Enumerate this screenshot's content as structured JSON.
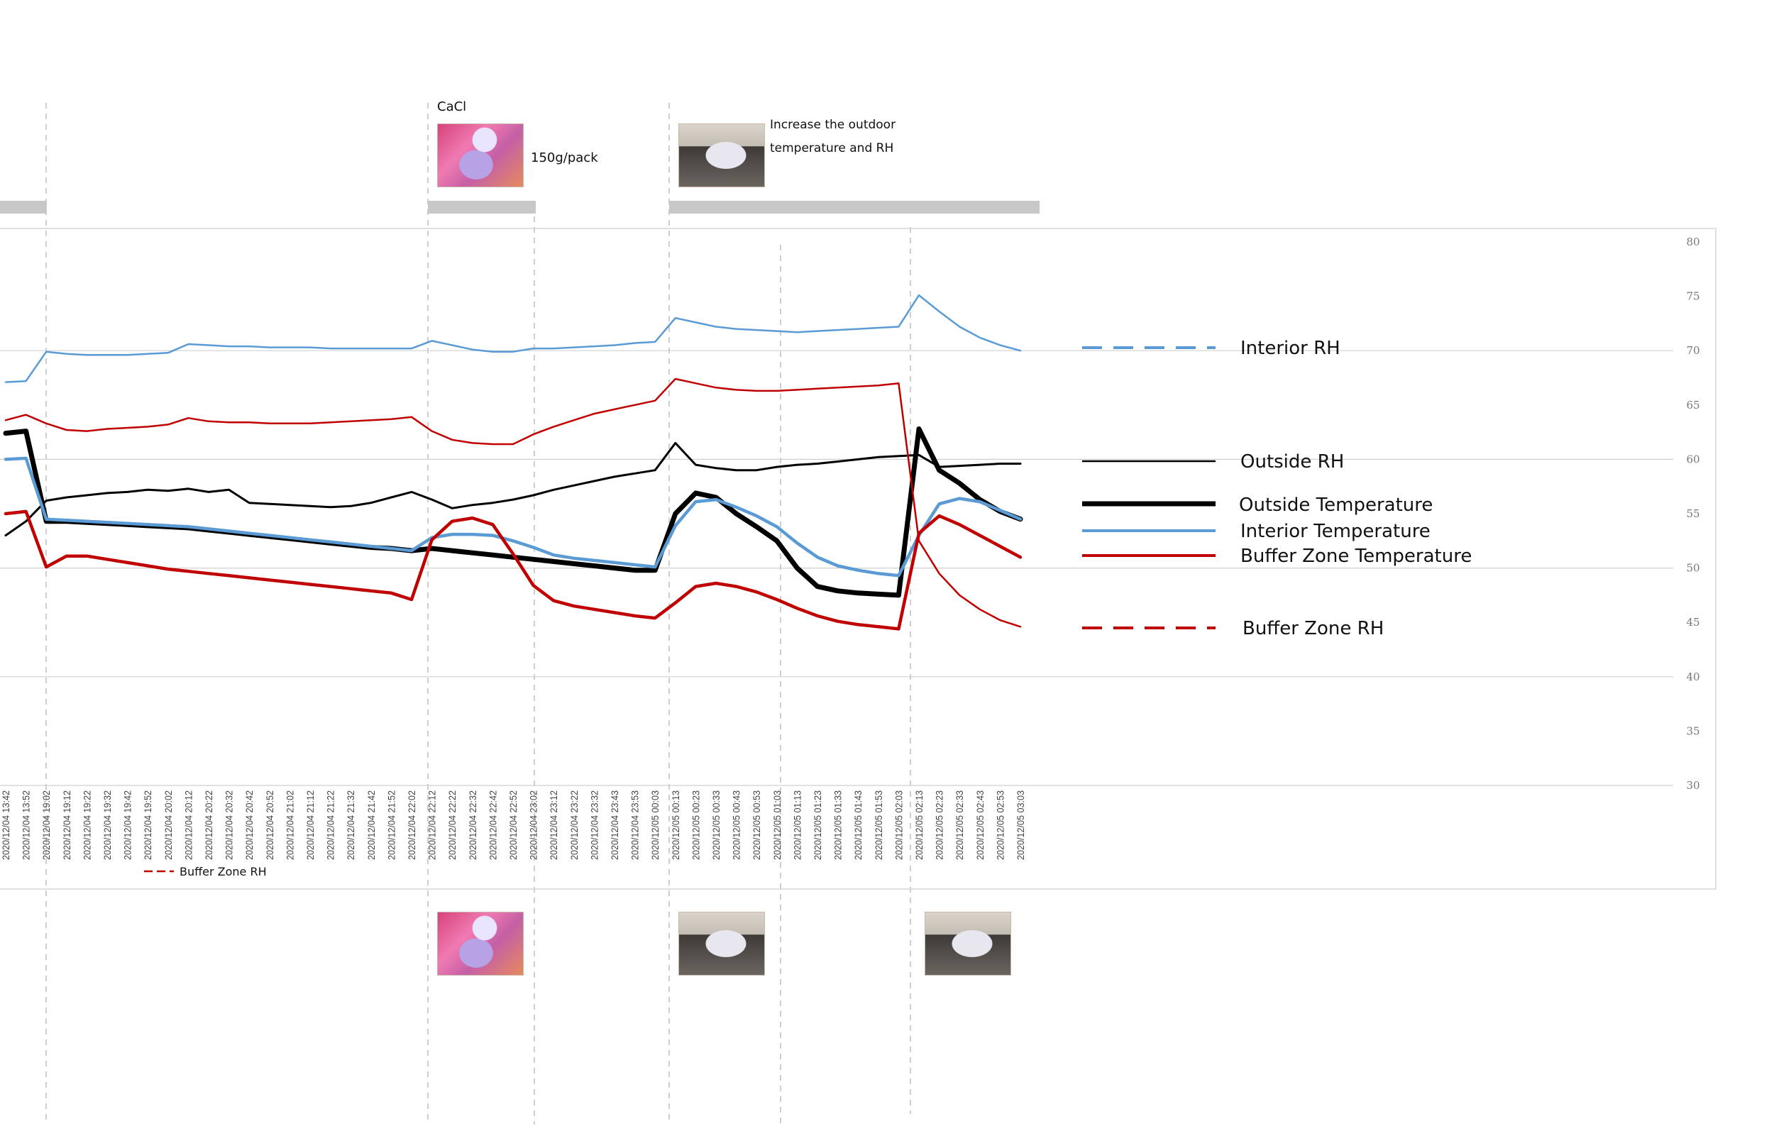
{
  "annotations": {
    "cacl_label": "CaCl",
    "cacl_amount": "150g/pack",
    "outdoor_note_line1": "Increase the outdoor",
    "outdoor_note_line2": "temperature and RH"
  },
  "colors": {
    "interior": "#5b9bd5",
    "outside": "#000000",
    "buffer": "#c00000",
    "gray_bar": "#c8c8c8",
    "grid": "#d0d0d0"
  },
  "chart_data": {
    "type": "line",
    "title": "",
    "xlabel": "",
    "ylabel": "",
    "ylim": [
      30,
      80
    ],
    "y_ticks": [
      "30",
      "35",
      "40",
      "45",
      "50",
      "55",
      "60",
      "65",
      "70",
      "75",
      "80"
    ],
    "grid": true,
    "legend_position": "right",
    "x_tick_labels": [
      "2020/12/04 13:42",
      "2020/12/04 13:52",
      "2020/12/04 19:02",
      "2020/12/04 19:12",
      "2020/12/04 19:22",
      "2020/12/04 19:32",
      "2020/12/04 19:42",
      "2020/12/04 19:52",
      "2020/12/04 20:02",
      "2020/12/04 20:12",
      "2020/12/04 20:22",
      "2020/12/04 20:32",
      "2020/12/04 20:42",
      "2020/12/04 20:52",
      "2020/12/04 21:02",
      "2020/12/04 21:12",
      "2020/12/04 21:22",
      "2020/12/04 21:32",
      "2020/12/04 21:42",
      "2020/12/04 21:52",
      "2020/12/04 22:02",
      "2020/12/04 22:12",
      "2020/12/04 22:22",
      "2020/12/04 22:32",
      "2020/12/04 22:42",
      "2020/12/04 22:52",
      "2020/12/04 23:02",
      "2020/12/04 23:12",
      "2020/12/04 23:22",
      "2020/12/04 23:32",
      "2020/12/04 23:43",
      "2020/12/04 23:53",
      "2020/12/05 00:03",
      "2020/12/05 00:13",
      "2020/12/05 00:23",
      "2020/12/05 00:33",
      "2020/12/05 00:43",
      "2020/12/05 00:53",
      "2020/12/05 01:03",
      "2020/12/05 01:13",
      "2020/12/05 01:23",
      "2020/12/05 01:33",
      "2020/12/05 01:43",
      "2020/12/05 01:53",
      "2020/12/05 02:03",
      "2020/12/05 02:13",
      "2020/12/05 02:23",
      "2020/12/05 02:33",
      "2020/12/05 02:43",
      "2020/12/05 02:53",
      "2020/12/05 03:03"
    ],
    "series": [
      {
        "name": "Interior RH",
        "style": "dashed",
        "values": [
          67.1,
          67.2,
          69.9,
          69.7,
          69.6,
          69.6,
          69.6,
          69.7,
          69.8,
          70.6,
          70.5,
          70.4,
          70.4,
          70.3,
          70.3,
          70.3,
          70.2,
          70.2,
          70.2,
          70.2,
          70.2,
          70.9,
          70.5,
          70.1,
          69.9,
          69.9,
          70.2,
          70.2,
          70.3,
          70.4,
          70.5,
          70.7,
          70.8,
          73.0,
          72.6,
          72.2,
          72.0,
          71.9,
          71.8,
          71.7,
          71.8,
          71.9,
          72.0,
          72.1,
          72.2,
          75.1,
          73.6,
          72.2,
          71.2,
          70.5,
          70.0
        ]
      },
      {
        "name": "Outside RH",
        "style": "thin",
        "values": [
          53.0,
          54.3,
          56.2,
          56.5,
          56.7,
          56.9,
          57.0,
          57.2,
          57.1,
          57.3,
          57.0,
          57.2,
          56.0,
          55.9,
          55.8,
          55.7,
          55.6,
          55.7,
          56.0,
          56.5,
          57.0,
          56.3,
          55.5,
          55.8,
          56.0,
          56.3,
          56.7,
          57.2,
          57.6,
          58.0,
          58.4,
          58.7,
          59.0,
          61.5,
          59.5,
          59.2,
          59.0,
          59.0,
          59.3,
          59.5,
          59.6,
          59.8,
          60.0,
          60.2,
          60.3,
          60.4,
          59.3,
          59.4,
          59.5,
          59.6,
          59.6
        ]
      },
      {
        "name": "Outside Temperature",
        "style": "thick",
        "values": [
          62.4,
          62.6,
          54.3,
          54.3,
          54.2,
          54.1,
          54.0,
          53.9,
          53.8,
          53.7,
          53.5,
          53.3,
          53.1,
          52.9,
          52.7,
          52.5,
          52.3,
          52.1,
          51.9,
          51.8,
          51.6,
          51.8,
          51.6,
          51.4,
          51.2,
          51.0,
          50.8,
          50.6,
          50.4,
          50.2,
          50.0,
          49.8,
          49.8,
          55.0,
          56.9,
          56.5,
          55.0,
          53.8,
          52.5,
          50.0,
          48.3,
          47.9,
          47.7,
          47.6,
          47.5,
          62.8,
          59.0,
          57.8,
          56.3,
          55.2,
          54.5
        ]
      },
      {
        "name": "Interior Temperature",
        "style": "normal",
        "values": [
          60.0,
          60.1,
          54.5,
          54.4,
          54.3,
          54.2,
          54.1,
          54.0,
          53.9,
          53.8,
          53.6,
          53.4,
          53.2,
          53.0,
          52.8,
          52.6,
          52.4,
          52.2,
          52.0,
          51.8,
          51.6,
          52.8,
          53.1,
          53.1,
          53.0,
          52.5,
          51.9,
          51.2,
          50.9,
          50.7,
          50.5,
          50.3,
          50.1,
          53.9,
          56.1,
          56.3,
          55.6,
          54.8,
          53.8,
          52.3,
          51.0,
          50.2,
          49.8,
          49.5,
          49.3,
          53.0,
          55.9,
          56.4,
          56.1,
          55.3,
          54.5
        ]
      },
      {
        "name": "Buffer Zone Temperature",
        "style": "normal",
        "values": [
          55.0,
          55.2,
          50.1,
          51.1,
          51.1,
          50.8,
          50.5,
          50.2,
          49.9,
          49.7,
          49.5,
          49.3,
          49.1,
          48.9,
          48.7,
          48.5,
          48.3,
          48.1,
          47.9,
          47.7,
          47.1,
          52.6,
          54.3,
          54.6,
          54.0,
          51.3,
          48.4,
          47.0,
          46.5,
          46.2,
          45.9,
          45.6,
          45.4,
          46.8,
          48.3,
          48.6,
          48.3,
          47.8,
          47.1,
          46.3,
          45.6,
          45.1,
          44.8,
          44.6,
          44.4,
          53.2,
          54.8,
          54.0,
          53.0,
          52.0,
          51.0
        ]
      },
      {
        "name": "Buffer Zone RH",
        "style": "dashed",
        "values": [
          63.6,
          64.1,
          63.3,
          62.7,
          62.6,
          62.8,
          62.9,
          63.0,
          63.2,
          63.8,
          63.5,
          63.4,
          63.4,
          63.3,
          63.3,
          63.3,
          63.4,
          63.5,
          63.6,
          63.7,
          63.9,
          62.6,
          61.8,
          61.5,
          61.4,
          61.4,
          62.3,
          63.0,
          63.6,
          64.2,
          64.6,
          65.0,
          65.4,
          67.4,
          67.0,
          66.6,
          66.4,
          66.3,
          66.3,
          66.4,
          66.5,
          66.6,
          66.7,
          66.8,
          67.0,
          52.5,
          49.5,
          47.5,
          46.2,
          45.2,
          44.6
        ]
      }
    ],
    "legend": [
      {
        "label": "Interior RH"
      },
      {
        "label": "Outside RH"
      },
      {
        "label": "Outside Temperature"
      },
      {
        "label": "Interior Temperature"
      },
      {
        "label": "Buffer Zone Temperature"
      },
      {
        "label": "Buffer Zone RH"
      }
    ],
    "small_legend": {
      "label": "Buffer Zone RH"
    }
  }
}
